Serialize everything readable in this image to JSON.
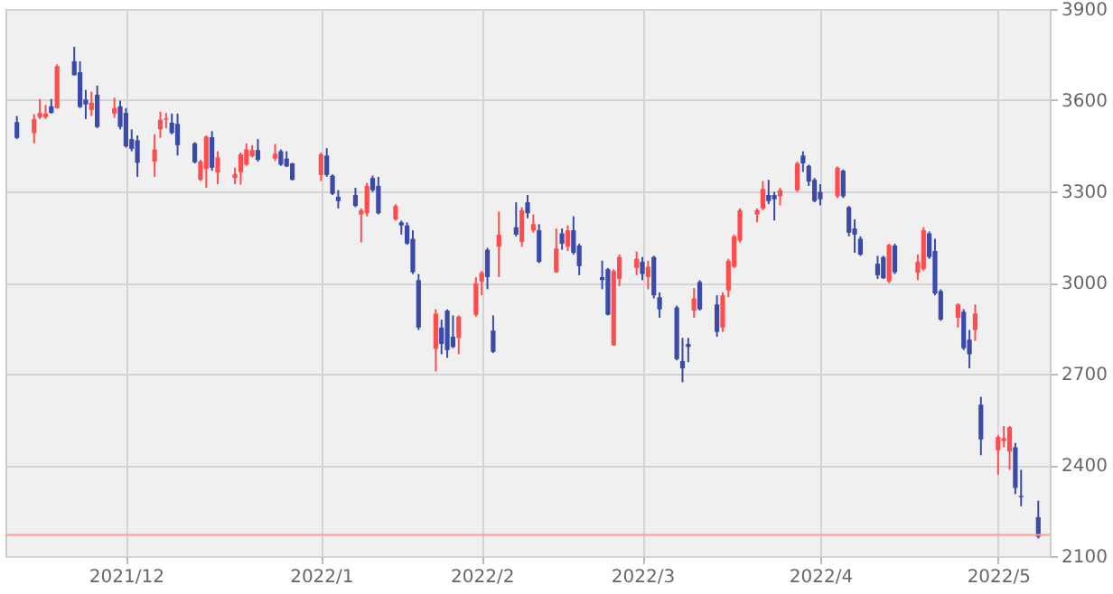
{
  "chart_data": {
    "type": "candlestick",
    "x": [
      "2021-11-12",
      "2021-11-15",
      "2021-11-16",
      "2021-11-17",
      "2021-11-18",
      "2021-11-19",
      "2021-11-22",
      "2021-11-23",
      "2021-11-24",
      "2021-11-25",
      "2021-11-26",
      "2021-11-29",
      "2021-11-30",
      "2021-12-01",
      "2021-12-02",
      "2021-12-03",
      "2021-12-06",
      "2021-12-07",
      "2021-12-08",
      "2021-12-09",
      "2021-12-10",
      "2021-12-13",
      "2021-12-14",
      "2021-12-15",
      "2021-12-16",
      "2021-12-17",
      "2021-12-20",
      "2021-12-21",
      "2021-12-22",
      "2021-12-23",
      "2021-12-24",
      "2021-12-27",
      "2021-12-28",
      "2021-12-29",
      "2021-12-30",
      "2022-01-04",
      "2022-01-05",
      "2022-01-06",
      "2022-01-07",
      "2022-01-10",
      "2022-01-11",
      "2022-01-12",
      "2022-01-13",
      "2022-01-14",
      "2022-01-17",
      "2022-01-18",
      "2022-01-19",
      "2022-01-20",
      "2022-01-21",
      "2022-01-24",
      "2022-01-25",
      "2022-01-26",
      "2022-01-27",
      "2022-01-28",
      "2022-01-31",
      "2022-02-01",
      "2022-02-02",
      "2022-02-03",
      "2022-02-04",
      "2022-02-07",
      "2022-02-08",
      "2022-02-09",
      "2022-02-10",
      "2022-02-11",
      "2022-02-14",
      "2022-02-15",
      "2022-02-16",
      "2022-02-17",
      "2022-02-18",
      "2022-02-22",
      "2022-02-23",
      "2022-02-24",
      "2022-02-25",
      "2022-02-28",
      "2022-03-01",
      "2022-03-02",
      "2022-03-03",
      "2022-03-04",
      "2022-03-07",
      "2022-03-08",
      "2022-03-09",
      "2022-03-10",
      "2022-03-11",
      "2022-03-14",
      "2022-03-15",
      "2022-03-16",
      "2022-03-17",
      "2022-03-18",
      "2022-03-21",
      "2022-03-22",
      "2022-03-23",
      "2022-03-24",
      "2022-03-25",
      "2022-03-28",
      "2022-03-29",
      "2022-03-30",
      "2022-03-31",
      "2022-04-01",
      "2022-04-04",
      "2022-04-05",
      "2022-04-06",
      "2022-04-07",
      "2022-04-08",
      "2022-04-11",
      "2022-04-12",
      "2022-04-13",
      "2022-04-14",
      "2022-04-18",
      "2022-04-19",
      "2022-04-20",
      "2022-04-21",
      "2022-04-22",
      "2022-04-25",
      "2022-04-26",
      "2022-04-27",
      "2022-04-28",
      "2022-04-29",
      "2022-05-02",
      "2022-05-03",
      "2022-05-04",
      "2022-05-05",
      "2022-05-06",
      "2022-05-09"
    ],
    "ohlc": [
      [
        3528,
        3548,
        3472,
        3476
      ],
      [
        3492,
        3554,
        3458,
        3538
      ],
      [
        3544,
        3604,
        3538,
        3558
      ],
      [
        3544,
        3584,
        3538,
        3556
      ],
      [
        3580,
        3604,
        3556,
        3558
      ],
      [
        3574,
        3718,
        3572,
        3712
      ],
      [
        3728,
        3776,
        3682,
        3682
      ],
      [
        3692,
        3728,
        3574,
        3578
      ],
      [
        3602,
        3634,
        3538,
        3586
      ],
      [
        3568,
        3628,
        3548,
        3592
      ],
      [
        3618,
        3648,
        3508,
        3512
      ],
      [
        3556,
        3608,
        3542,
        3574
      ],
      [
        3580,
        3598,
        3504,
        3512
      ],
      [
        3558,
        3574,
        3444,
        3448
      ],
      [
        3472,
        3504,
        3432,
        3440
      ],
      [
        3468,
        3484,
        3348,
        3394
      ],
      [
        3398,
        3488,
        3348,
        3438
      ],
      [
        3504,
        3562,
        3476,
        3536
      ],
      [
        3536,
        3558,
        3508,
        3540
      ],
      [
        3526,
        3556,
        3488,
        3492
      ],
      [
        3522,
        3556,
        3418,
        3452
      ],
      [
        3458,
        3462,
        3392,
        3396
      ],
      [
        3338,
        3404,
        3334,
        3398
      ],
      [
        3374,
        3484,
        3312,
        3480
      ],
      [
        3478,
        3498,
        3368,
        3378
      ],
      [
        3362,
        3432,
        3324,
        3412
      ],
      [
        3344,
        3378,
        3324,
        3356
      ],
      [
        3364,
        3428,
        3322,
        3422
      ],
      [
        3388,
        3458,
        3384,
        3438
      ],
      [
        3416,
        3452,
        3412,
        3436
      ],
      [
        3436,
        3472,
        3398,
        3404
      ],
      [
        3408,
        3456,
        3400,
        3424
      ],
      [
        3432,
        3438,
        3384,
        3388
      ],
      [
        3408,
        3432,
        3380,
        3382
      ],
      [
        3392,
        3394,
        3336,
        3338
      ],
      [
        3354,
        3428,
        3334,
        3422
      ],
      [
        3418,
        3442,
        3348,
        3354
      ],
      [
        3352,
        3356,
        3288,
        3292
      ],
      [
        3282,
        3304,
        3244,
        3268
      ],
      [
        3288,
        3312,
        3248,
        3252
      ],
      [
        3224,
        3244,
        3132,
        3238
      ],
      [
        3228,
        3328,
        3218,
        3318
      ],
      [
        3344,
        3352,
        3298,
        3304
      ],
      [
        3318,
        3348,
        3224,
        3228
      ],
      [
        3208,
        3258,
        3204,
        3252
      ],
      [
        3198,
        3204,
        3158,
        3188
      ],
      [
        3188,
        3198,
        3124,
        3128
      ],
      [
        3144,
        3172,
        3028,
        3034
      ],
      [
        3008,
        3028,
        2844,
        2852
      ],
      [
        2782,
        2912,
        2708,
        2898
      ],
      [
        2852,
        2878,
        2764,
        2798
      ],
      [
        2908,
        2912,
        2752,
        2778
      ],
      [
        2822,
        2892,
        2784,
        2788
      ],
      [
        2818,
        2892,
        2764,
        2888
      ],
      [
        2894,
        3018,
        2888,
        2998
      ],
      [
        3004,
        3038,
        2958,
        3032
      ],
      [
        3108,
        3114,
        2978,
        3018
      ],
      [
        2842,
        2892,
        2768,
        2772
      ],
      [
        3118,
        3234,
        3018,
        3158
      ],
      [
        3182,
        3264,
        3152,
        3158
      ],
      [
        3134,
        3248,
        3118,
        3238
      ],
      [
        3264,
        3288,
        3212,
        3228
      ],
      [
        3172,
        3224,
        3164,
        3192
      ],
      [
        3172,
        3192,
        3064,
        3068
      ],
      [
        3034,
        3178,
        3032,
        3112
      ],
      [
        3162,
        3178,
        3108,
        3128
      ],
      [
        3118,
        3188,
        3104,
        3172
      ],
      [
        3172,
        3218,
        3092,
        3098
      ],
      [
        3122,
        3128,
        3024,
        3054
      ],
      [
        3018,
        3072,
        2978,
        3008
      ],
      [
        3044,
        3048,
        2892,
        2894
      ],
      [
        2794,
        3044,
        2792,
        3038
      ],
      [
        3012,
        3092,
        2988,
        3084
      ],
      [
        3048,
        3102,
        3024,
        3078
      ],
      [
        3068,
        3084,
        3008,
        3028
      ],
      [
        3018,
        3072,
        2978,
        3052
      ],
      [
        3084,
        3088,
        2948,
        2958
      ],
      [
        2952,
        2968,
        2884,
        2912
      ],
      [
        2918,
        2924,
        2744,
        2748
      ],
      [
        2742,
        2818,
        2672,
        2718
      ],
      [
        2798,
        2818,
        2738,
        2788
      ],
      [
        2908,
        2982,
        2884,
        2948
      ],
      [
        3002,
        3008,
        2908,
        2912
      ],
      [
        2928,
        2958,
        2822,
        2838
      ],
      [
        2852,
        2968,
        2838,
        2958
      ],
      [
        2974,
        3078,
        2952,
        3072
      ],
      [
        3052,
        3158,
        3048,
        3152
      ],
      [
        3138,
        3244,
        3132,
        3238
      ],
      [
        3224,
        3244,
        3198,
        3238
      ],
      [
        3244,
        3334,
        3238,
        3308
      ],
      [
        3288,
        3338,
        3258,
        3268
      ],
      [
        3288,
        3298,
        3204,
        3274
      ],
      [
        3284,
        3312,
        3254,
        3304
      ],
      [
        3304,
        3398,
        3298,
        3392
      ],
      [
        3418,
        3432,
        3364,
        3392
      ],
      [
        3384,
        3388,
        3318,
        3332
      ],
      [
        3338,
        3344,
        3264,
        3268
      ],
      [
        3298,
        3324,
        3254,
        3274
      ],
      [
        3284,
        3382,
        3278,
        3378
      ],
      [
        3368,
        3372,
        3278,
        3284
      ],
      [
        3248,
        3252,
        3152,
        3164
      ],
      [
        3178,
        3208,
        3098,
        3158
      ],
      [
        3144,
        3152,
        3088,
        3092
      ],
      [
        3062,
        3088,
        3012,
        3024
      ],
      [
        3084,
        3088,
        3012,
        3014
      ],
      [
        3004,
        3128,
        2998,
        3124
      ],
      [
        3122,
        3128,
        3028,
        3034
      ],
      [
        3032,
        3092,
        3008,
        3068
      ],
      [
        3044,
        3182,
        3038,
        3172
      ],
      [
        3162,
        3168,
        3078,
        3084
      ],
      [
        3104,
        3144,
        2958,
        2964
      ],
      [
        2972,
        2978,
        2874,
        2878
      ],
      [
        2884,
        2932,
        2852,
        2928
      ],
      [
        2904,
        2912,
        2778,
        2784
      ],
      [
        2812,
        2844,
        2718,
        2764
      ],
      [
        2844,
        2928,
        2808,
        2898
      ],
      [
        2598,
        2624,
        2432,
        2484
      ],
      [
        2448,
        2498,
        2368,
        2492
      ],
      [
        2478,
        2528,
        2458,
        2488
      ],
      [
        2444,
        2528,
        2384,
        2524
      ],
      [
        2458,
        2472,
        2304,
        2324
      ],
      [
        2298,
        2384,
        2264,
        2294
      ],
      [
        2228,
        2282,
        2158,
        2164
      ]
    ],
    "colors": [
      "#3a4aa8",
      "#ff4d4d",
      "#ff4d4d",
      "#ff4d4d",
      "#3a4aa8",
      "#ff4d4d",
      "#3a4aa8",
      "#3a4aa8",
      "#3a4aa8",
      "#ff4d4d",
      "#3a4aa8",
      "#ff4d4d",
      "#3a4aa8",
      "#3a4aa8",
      "#3a4aa8",
      "#3a4aa8",
      "#ff4d4d",
      "#ff4d4d",
      "#ff4d4d",
      "#3a4aa8",
      "#3a4aa8",
      "#3a4aa8",
      "#ff4d4d",
      "#ff4d4d",
      "#3a4aa8",
      "#ff4d4d",
      "#ff4d4d",
      "#ff4d4d",
      "#ff4d4d",
      "#ff4d4d",
      "#3a4aa8",
      "#ff4d4d",
      "#3a4aa8",
      "#3a4aa8",
      "#3a4aa8",
      "#ff4d4d",
      "#3a4aa8",
      "#3a4aa8",
      "#3a4aa8",
      "#3a4aa8",
      "#ff4d4d",
      "#ff4d4d",
      "#3a4aa8",
      "#3a4aa8",
      "#ff4d4d",
      "#3a4aa8",
      "#3a4aa8",
      "#3a4aa8",
      "#3a4aa8",
      "#ff4d4d",
      "#3a4aa8",
      "#3a4aa8",
      "#3a4aa8",
      "#ff4d4d",
      "#ff4d4d",
      "#ff4d4d",
      "#3a4aa8",
      "#3a4aa8",
      "#ff4d4d",
      "#3a4aa8",
      "#ff4d4d",
      "#3a4aa8",
      "#ff4d4d",
      "#3a4aa8",
      "#ff4d4d",
      "#3a4aa8",
      "#ff4d4d",
      "#3a4aa8",
      "#3a4aa8",
      "#3a4aa8",
      "#3a4aa8",
      "#ff4d4d",
      "#ff4d4d",
      "#ff4d4d",
      "#3a4aa8",
      "#ff4d4d",
      "#3a4aa8",
      "#3a4aa8",
      "#3a4aa8",
      "#3a4aa8",
      "#3a4aa8",
      "#ff4d4d",
      "#3a4aa8",
      "#3a4aa8",
      "#ff4d4d",
      "#ff4d4d",
      "#ff4d4d",
      "#ff4d4d",
      "#ff4d4d",
      "#ff4d4d",
      "#3a4aa8",
      "#3a4aa8",
      "#ff4d4d",
      "#ff4d4d",
      "#3a4aa8",
      "#3a4aa8",
      "#3a4aa8",
      "#3a4aa8",
      "#ff4d4d",
      "#3a4aa8",
      "#3a4aa8",
      "#3a4aa8",
      "#3a4aa8",
      "#3a4aa8",
      "#3a4aa8",
      "#ff4d4d",
      "#3a4aa8",
      "#ff4d4d",
      "#ff4d4d",
      "#3a4aa8",
      "#3a4aa8",
      "#3a4aa8",
      "#ff4d4d",
      "#3a4aa8",
      "#3a4aa8",
      "#ff4d4d",
      "#3a4aa8",
      "#ff4d4d",
      "#ff4d4d",
      "#ff4d4d",
      "#3a4aa8",
      "#3a4aa8",
      "#3a4aa8"
    ],
    "xlim": [
      "2021-11-10",
      "2022-05-11"
    ],
    "xticks": [
      {
        "value": "2021-12-01",
        "label": "2021/12"
      },
      {
        "value": "2022-01-04",
        "label": "2022/1"
      },
      {
        "value": "2022-02-01",
        "label": "2022/2"
      },
      {
        "value": "2022-03-01",
        "label": "2022/3"
      },
      {
        "value": "2022-04-01",
        "label": "2022/4"
      },
      {
        "value": "2022-05-02",
        "label": "2022/5"
      }
    ],
    "ylim": [
      2100,
      3900
    ],
    "yticks": [
      2100,
      2400,
      2700,
      3000,
      3300,
      3600,
      3900
    ],
    "grid": true,
    "ref_lines": [
      {
        "axis": "y",
        "value": 2170,
        "color": "#ff9a9a"
      }
    ]
  }
}
